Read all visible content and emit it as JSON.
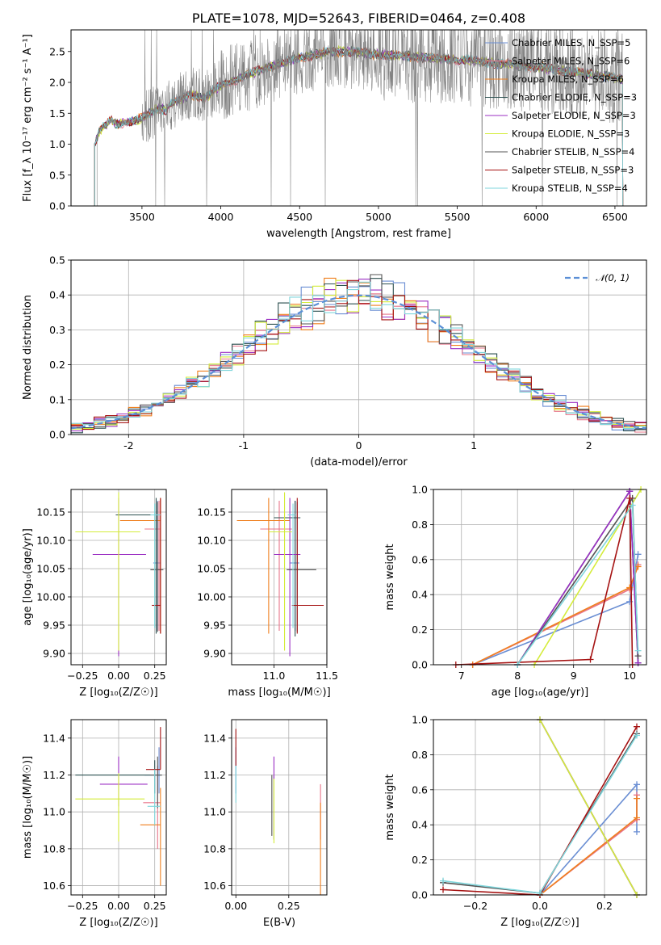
{
  "colors": [
    "#6a8ed3",
    "#e8758a",
    "#ef7f1e",
    "#2b4f4f",
    "#9b2fc3",
    "#d4ec3a",
    "#555555",
    "#a51212",
    "#7fd6dc"
  ],
  "chart_data": [
    {
      "id": "spectrum",
      "type": "line",
      "title": "PLATE=1078, MJD=52643, FIBERID=0464, z=0.408",
      "xlabel": "wavelength [Angstrom, rest frame]",
      "ylabel": "Flux [f_λ 10⁻¹⁷ erg cm⁻² s⁻¹ A⁻¹]",
      "xlim": [
        3050,
        6700
      ],
      "ylim": [
        0,
        2.85
      ],
      "xticks": [
        3500,
        4000,
        4500,
        5000,
        5500,
        6000,
        6500
      ],
      "yticks": [
        0.0,
        0.5,
        1.0,
        1.5,
        2.0,
        2.5
      ],
      "grid": false,
      "legend_position": "top-right",
      "data_color": "#808080",
      "legend": [
        {
          "label": "Chabrier MILES, N_SSP=5",
          "color": "#6a8ed3"
        },
        {
          "label": "Salpeter MILES, N_SSP=6",
          "color": "#e8758a"
        },
        {
          "label": "Kroupa MILES, N_SSP=6",
          "color": "#ef7f1e"
        },
        {
          "label": "Chabrier ELODIE, N_SSP=3",
          "color": "#2b4f4f"
        },
        {
          "label": "Salpeter ELODIE, N_SSP=3",
          "color": "#9b2fc3"
        },
        {
          "label": "Kroupa ELODIE, N_SSP=3",
          "color": "#d4ec3a"
        },
        {
          "label": "Chabrier STELIB, N_SSP=4",
          "color": "#555555"
        },
        {
          "label": "Salpeter STELIB, N_SSP=3",
          "color": "#a51212"
        },
        {
          "label": "Kroupa STELIB, N_SSP=4",
          "color": "#7fd6dc"
        }
      ],
      "model_continuum": {
        "x": [
          3200,
          3230,
          3260,
          3300,
          3350,
          3400,
          3450,
          3500,
          3550,
          3600,
          3650,
          3700,
          3750,
          3800,
          3850,
          3900,
          3950,
          4000,
          4100,
          4200,
          4300,
          4400,
          4500,
          4600,
          4700,
          4800,
          4900,
          5000,
          5200,
          5400,
          5600,
          5800,
          6000,
          6200,
          6400,
          6550
        ],
        "y": [
          1.0,
          1.22,
          1.28,
          1.38,
          1.32,
          1.36,
          1.38,
          1.42,
          1.5,
          1.58,
          1.55,
          1.7,
          1.72,
          1.8,
          1.78,
          1.75,
          1.85,
          1.95,
          2.05,
          2.15,
          2.25,
          2.32,
          2.4,
          2.45,
          2.5,
          2.5,
          2.48,
          2.45,
          2.42,
          2.38,
          2.35,
          2.3,
          2.25,
          2.18,
          2.12,
          2.05
        ]
      }
    },
    {
      "id": "residuals",
      "type": "histogram",
      "xlabel": "(data-model)/error",
      "ylabel": "Normed distribution",
      "xlim": [
        -2.5,
        2.5
      ],
      "ylim": [
        0,
        0.5
      ],
      "xticks": [
        -2,
        -1,
        0,
        1,
        2
      ],
      "yticks": [
        0.0,
        0.1,
        0.2,
        0.3,
        0.4,
        0.5
      ],
      "grid": true,
      "legend_position": "top-right",
      "bin_width": 0.1,
      "reference_curve": {
        "label": "𝒩(0, 1)",
        "style": "dashed",
        "color": "#5b8fd6",
        "mean": 0,
        "sigma": 1
      }
    },
    {
      "id": "age-vs-Z",
      "type": "errorbar",
      "xlabel": "Z [log₁₀(Z/Z☉)]",
      "ylabel": "age  [log₁₀(age/yr)]",
      "xlim": [
        -0.33,
        0.33
      ],
      "ylim": [
        9.88,
        10.19
      ],
      "xticks": [
        -0.25,
        0.0,
        0.25
      ],
      "xticklabels": [
        "−0.25",
        "0.00",
        "0.25"
      ],
      "yticks": [
        9.9,
        9.95,
        10.0,
        10.05,
        10.1,
        10.15
      ],
      "yticklabels": [
        "9.90",
        "9.95",
        "10.00",
        "10.05",
        "10.10",
        "10.15"
      ],
      "grid": true,
      "points": [
        {
          "c": 0,
          "x": 0.27,
          "y": 10.06,
          "xerr": [
            0.03,
            0.02
          ],
          "yerr": [
            0.12,
            0.11
          ]
        },
        {
          "c": 1,
          "x": 0.28,
          "y": 10.12,
          "xerr": [
            0.1,
            0.01
          ],
          "yerr": [
            0.18,
            0.05
          ]
        },
        {
          "c": 2,
          "x": 0.29,
          "y": 10.135,
          "xerr": [
            0.28,
            0.0
          ],
          "yerr": [
            0.2,
            0.04
          ]
        },
        {
          "c": 3,
          "x": 0.26,
          "y": 10.145,
          "xerr": [
            0.28,
            0.03
          ],
          "yerr": [
            0.21,
            0.03
          ]
        },
        {
          "c": 4,
          "x": 0.0,
          "y": 10.075,
          "xerr": [
            0.18,
            0.19
          ],
          "yerr": [
            0.18,
            0.1
          ]
        },
        {
          "c": 5,
          "x": 0.0,
          "y": 10.115,
          "xerr": [
            0.3,
            0.15
          ],
          "yerr": [
            0.21,
            0.07
          ]
        },
        {
          "c": 6,
          "x": 0.27,
          "y": 10.048,
          "xerr": [
            0.05,
            0.04
          ],
          "yerr": [
            0.11,
            0.12
          ]
        },
        {
          "c": 7,
          "x": 0.29,
          "y": 9.985,
          "xerr": [
            0.06,
            0.0
          ],
          "yerr": [
            0.05,
            0.19
          ]
        },
        {
          "c": 8,
          "x": 0.25,
          "y": 10.145,
          "xerr": [
            0.03,
            0.04
          ],
          "yerr": [
            0.2,
            0.02
          ]
        }
      ]
    },
    {
      "id": "age-vs-mass",
      "type": "errorbar",
      "xlabel": "mass [log₁₀(M/M☉)]",
      "ylabel": "",
      "xlim": [
        10.6,
        11.5
      ],
      "ylim": [
        9.88,
        10.19
      ],
      "xticks": [
        11.0,
        11.5
      ],
      "xticklabels": [
        "11.0",
        "11.5"
      ],
      "yticks": [
        9.9,
        9.95,
        10.0,
        10.05,
        10.1,
        10.15
      ],
      "yticklabels": [
        "9.90",
        "9.95",
        "10.00",
        "10.05",
        "10.10",
        "10.15"
      ],
      "grid": true,
      "points": [
        {
          "c": 0,
          "x": 11.2,
          "y": 10.06,
          "xerr": [
            0.05,
            0.04
          ],
          "yerr": [
            0.12,
            0.11
          ]
        },
        {
          "c": 1,
          "x": 11.05,
          "y": 10.12,
          "xerr": [
            0.18,
            0.12
          ],
          "yerr": [
            0.18,
            0.05
          ]
        },
        {
          "c": 2,
          "x": 10.95,
          "y": 10.135,
          "xerr": [
            0.3,
            0.2
          ],
          "yerr": [
            0.2,
            0.04
          ]
        },
        {
          "c": 3,
          "x": 11.2,
          "y": 10.14,
          "xerr": [
            0.2,
            0.05
          ],
          "yerr": [
            0.21,
            0.03
          ]
        },
        {
          "c": 4,
          "x": 11.15,
          "y": 10.075,
          "xerr": [
            0.15,
            0.1
          ],
          "yerr": [
            0.18,
            0.1
          ]
        },
        {
          "c": 5,
          "x": 11.1,
          "y": 10.115,
          "xerr": [
            0.15,
            0.07
          ],
          "yerr": [
            0.21,
            0.07
          ]
        },
        {
          "c": 6,
          "x": 11.22,
          "y": 10.048,
          "xerr": [
            0.1,
            0.18
          ],
          "yerr": [
            0.11,
            0.12
          ]
        },
        {
          "c": 7,
          "x": 11.22,
          "y": 9.985,
          "xerr": [
            0.05,
            0.25
          ],
          "yerr": [
            0.05,
            0.19
          ]
        },
        {
          "c": 8,
          "x": 11.18,
          "y": 10.145,
          "xerr": [
            0.05,
            0.02
          ],
          "yerr": [
            0.2,
            0.02
          ]
        }
      ]
    },
    {
      "id": "weight-vs-age",
      "type": "line",
      "xlabel": "age  [log₁₀(age/yr)]",
      "ylabel": "mass weight",
      "xlim": [
        6.5,
        10.3
      ],
      "ylim": [
        0,
        1.0
      ],
      "xticks": [
        7,
        8,
        9,
        10
      ],
      "yticks": [
        0.0,
        0.2,
        0.4,
        0.6,
        0.8,
        1.0
      ],
      "grid": true,
      "series": [
        {
          "c": 0,
          "x": [
            7.2,
            10.0,
            10.15
          ],
          "y": [
            0.0,
            0.36,
            0.63
          ]
        },
        {
          "c": 1,
          "x": [
            7.2,
            10.0,
            10.15
          ],
          "y": [
            0.0,
            0.43,
            0.57
          ]
        },
        {
          "c": 2,
          "x": [
            7.2,
            10.0,
            10.15
          ],
          "y": [
            0.0,
            0.44,
            0.56
          ]
        },
        {
          "c": 3,
          "x": [
            8.0,
            10.0,
            10.15
          ],
          "y": [
            0.0,
            0.99,
            0.01
          ]
        },
        {
          "c": 4,
          "x": [
            8.0,
            10.0,
            10.15
          ],
          "y": [
            0.0,
            0.99,
            0.01
          ]
        },
        {
          "c": 5,
          "x": [
            8.3,
            10.2
          ],
          "y": [
            0.0,
            1.0
          ]
        },
        {
          "c": 6,
          "x": [
            8.0,
            10.05,
            10.15
          ],
          "y": [
            0.0,
            0.95,
            0.05
          ]
        },
        {
          "c": 7,
          "x": [
            6.9,
            9.3,
            10.0,
            10.05
          ],
          "y": [
            0.0,
            0.03,
            0.95,
            0.0
          ]
        },
        {
          "c": 8,
          "x": [
            8.0,
            10.05,
            10.15
          ],
          "y": [
            0.0,
            0.91,
            0.08
          ]
        }
      ]
    },
    {
      "id": "mass-vs-Z",
      "type": "errorbar",
      "xlabel": "Z [log₁₀(Z/Z☉)]",
      "ylabel": "mass [log₁₀(M/M☉)]",
      "xlim": [
        -0.33,
        0.33
      ],
      "ylim": [
        10.55,
        11.5
      ],
      "xticks": [
        -0.25,
        0.0,
        0.25
      ],
      "xticklabels": [
        "−0.25",
        "0.00",
        "0.25"
      ],
      "yticks": [
        10.6,
        10.8,
        11.0,
        11.2,
        11.4
      ],
      "yticklabels": [
        "10.6",
        "10.8",
        "11.0",
        "11.2",
        "11.4"
      ],
      "grid": true,
      "points": [
        {
          "c": 0,
          "x": 0.28,
          "y": 11.2,
          "xerr": [
            0.1,
            0.01
          ],
          "yerr": [
            0.1,
            0.15
          ]
        },
        {
          "c": 1,
          "x": 0.27,
          "y": 11.05,
          "xerr": [
            0.1,
            0.02
          ],
          "yerr": [
            0.25,
            0.2
          ]
        },
        {
          "c": 2,
          "x": 0.29,
          "y": 10.93,
          "xerr": [
            0.14,
            0.0
          ],
          "yerr": [
            0.33,
            0.2
          ]
        },
        {
          "c": 3,
          "x": 0.25,
          "y": 11.2,
          "xerr": [
            0.55,
            0.05
          ],
          "yerr": [
            0.1,
            0.08
          ]
        },
        {
          "c": 4,
          "x": 0.0,
          "y": 11.15,
          "xerr": [
            0.13,
            0.2
          ],
          "yerr": [
            0.12,
            0.15
          ]
        },
        {
          "c": 5,
          "x": 0.0,
          "y": 11.07,
          "xerr": [
            0.3,
            0.18
          ],
          "yerr": [
            0.23,
            0.14
          ]
        },
        {
          "c": 6,
          "x": 0.27,
          "y": 11.2,
          "xerr": [
            0.05,
            0.03
          ],
          "yerr": [
            0.18,
            0.1
          ]
        },
        {
          "c": 7,
          "x": 0.29,
          "y": 11.23,
          "xerr": [
            0.1,
            0.0
          ],
          "yerr": [
            0.0,
            0.23
          ]
        },
        {
          "c": 8,
          "x": 0.25,
          "y": 11.03,
          "xerr": [
            0.05,
            0.04
          ],
          "yerr": [
            0.1,
            0.2
          ]
        }
      ]
    },
    {
      "id": "mass-vs-ebv",
      "type": "errorbar",
      "xlabel": "E(B-V)",
      "ylabel": "",
      "xlim": [
        -0.02,
        0.43
      ],
      "ylim": [
        10.55,
        11.5
      ],
      "xticks": [
        0.0,
        0.25
      ],
      "xticklabels": [
        "0.00",
        "0.25"
      ],
      "yticks": [
        10.6,
        10.8,
        11.0,
        11.2,
        11.4
      ],
      "yticklabels": [
        "10.6",
        "10.8",
        "11.0",
        "11.2",
        "11.4"
      ],
      "grid": true,
      "points": [
        {
          "c": 0,
          "x": 0.0,
          "y": 11.2,
          "xerr": [
            0,
            0
          ],
          "yerr": [
            0.1,
            0.15
          ]
        },
        {
          "c": 1,
          "x": 0.4,
          "y": 10.95,
          "xerr": [
            0,
            0
          ],
          "yerr": [
            0.1,
            0.2
          ]
        },
        {
          "c": 2,
          "x": 0.4,
          "y": 10.8,
          "xerr": [
            0,
            0
          ],
          "yerr": [
            0.25,
            0.25
          ]
        },
        {
          "c": 3,
          "x": 0.18,
          "y": 11.05,
          "xerr": [
            0,
            0
          ],
          "yerr": [
            0.2,
            0.15
          ]
        },
        {
          "c": 4,
          "x": 0.18,
          "y": 11.05,
          "xerr": [
            0,
            0
          ],
          "yerr": [
            0.2,
            0.25
          ]
        },
        {
          "c": 5,
          "x": 0.18,
          "y": 11.03,
          "xerr": [
            0,
            0
          ],
          "yerr": [
            0.2,
            0.15
          ]
        },
        {
          "c": 6,
          "x": 0.17,
          "y": 11.05,
          "xerr": [
            0,
            0
          ],
          "yerr": [
            0.18,
            0.15
          ]
        },
        {
          "c": 7,
          "x": 0.0,
          "y": 11.35,
          "xerr": [
            0,
            0
          ],
          "yerr": [
            0.1,
            0.1
          ]
        },
        {
          "c": 8,
          "x": 0.0,
          "y": 11.15,
          "xerr": [
            0,
            0
          ],
          "yerr": [
            0.1,
            0.1
          ]
        }
      ]
    },
    {
      "id": "weight-vs-Z",
      "type": "line",
      "xlabel": "Z [log₁₀(Z/Z☉)]",
      "ylabel": "mass weight",
      "xlim": [
        -0.33,
        0.33
      ],
      "ylim": [
        0,
        1.0
      ],
      "xticks": [
        -0.2,
        0.0,
        0.2
      ],
      "xticklabels": [
        "−0.2",
        "0.0",
        "0.2"
      ],
      "yticks": [
        0.0,
        0.2,
        0.4,
        0.6,
        0.8,
        1.0
      ],
      "grid": true,
      "series": [
        {
          "c": 0,
          "x": [
            0.0,
            0.3,
            0.3
          ],
          "y": [
            0.0,
            0.63,
            0.36
          ]
        },
        {
          "c": 1,
          "x": [
            0.0,
            0.3,
            0.3
          ],
          "y": [
            0.0,
            0.43,
            0.57
          ]
        },
        {
          "c": 2,
          "x": [
            0.0,
            0.3,
            0.3
          ],
          "y": [
            0.0,
            0.44,
            0.55
          ]
        },
        {
          "c": 3,
          "x": [
            0.0,
            0.3
          ],
          "y": [
            1.0,
            0.0
          ]
        },
        {
          "c": 4,
          "x": [
            0.0,
            0.3
          ],
          "y": [
            1.0,
            0.0
          ]
        },
        {
          "c": 5,
          "x": [
            0.0,
            0.3
          ],
          "y": [
            1.0,
            0.0
          ]
        },
        {
          "c": 6,
          "x": [
            -0.3,
            0.0,
            0.3
          ],
          "y": [
            0.07,
            0.01,
            0.92
          ]
        },
        {
          "c": 7,
          "x": [
            -0.3,
            0.0,
            0.3
          ],
          "y": [
            0.03,
            0.0,
            0.96
          ]
        },
        {
          "c": 8,
          "x": [
            -0.3,
            0.0,
            0.3
          ],
          "y": [
            0.08,
            0.01,
            0.91
          ]
        }
      ]
    }
  ]
}
